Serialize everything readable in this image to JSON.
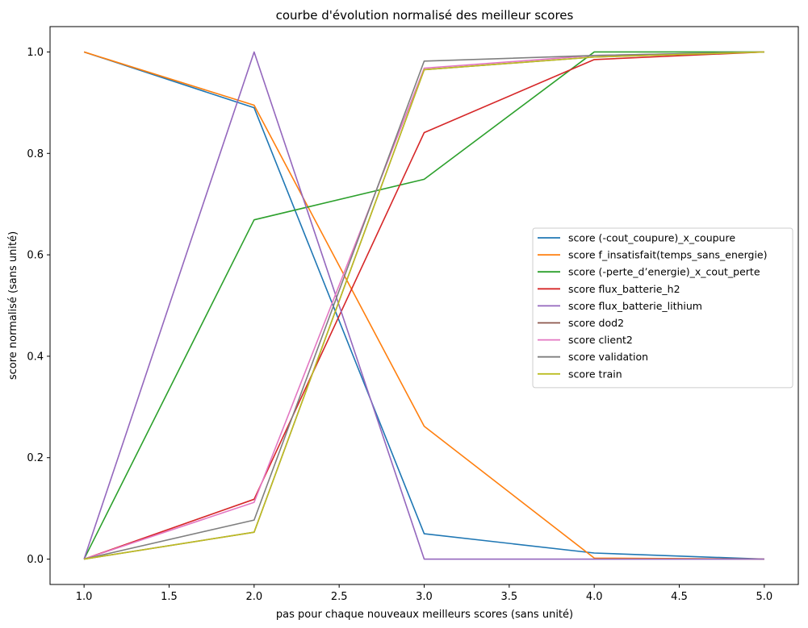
{
  "chart_data": {
    "type": "line",
    "title": "courbe d'évolution normalisé des meilleur scores",
    "xlabel": "pas pour chaque nouveaux meilleurs scores (sans unité)",
    "ylabel": "score normalisé (sans unité)",
    "xlim": [
      0.8,
      5.2
    ],
    "ylim": [
      -0.05,
      1.05
    ],
    "xticks": [
      1.0,
      1.5,
      2.0,
      2.5,
      3.0,
      3.5,
      4.0,
      4.5,
      5.0
    ],
    "xtick_labels": [
      "1.0",
      "1.5",
      "2.0",
      "2.5",
      "3.0",
      "3.5",
      "4.0",
      "4.5",
      "5.0"
    ],
    "yticks": [
      0.0,
      0.2,
      0.4,
      0.6,
      0.8,
      1.0
    ],
    "ytick_labels": [
      "0.0",
      "0.2",
      "0.4",
      "0.6",
      "0.8",
      "1.0"
    ],
    "grid": false,
    "legend_position": "center-right",
    "x": [
      1,
      2,
      3,
      4,
      5
    ],
    "series": [
      {
        "name": "score (-cout_coupure)_x_coupure",
        "color": "#1f77b4",
        "values": [
          1.0,
          0.89,
          0.05,
          0.012,
          0.0
        ]
      },
      {
        "name": "score f_insatisfait(temps_sans_energie)",
        "color": "#ff7f0e",
        "values": [
          1.0,
          0.895,
          0.262,
          0.002,
          0.0
        ]
      },
      {
        "name": "score (-perte_d’energie)_x_cout_perte",
        "color": "#2ca02c",
        "values": [
          0.0,
          0.669,
          0.749,
          1.0,
          1.0
        ]
      },
      {
        "name": "score flux_batterie_h2",
        "color": "#d62728",
        "values": [
          0.0,
          0.118,
          0.841,
          0.985,
          1.0
        ]
      },
      {
        "name": "score flux_batterie_lithium",
        "color": "#9467bd",
        "values": [
          0.0,
          1.0,
          0.0,
          0.0,
          0.0
        ]
      },
      {
        "name": "score dod2",
        "color": "#8c564b",
        "values": [
          0.0,
          0.053,
          0.965,
          0.99,
          1.0
        ]
      },
      {
        "name": "score client2",
        "color": "#e377c2",
        "values": [
          0.0,
          0.112,
          0.968,
          0.993,
          1.0
        ]
      },
      {
        "name": "score validation",
        "color": "#7f7f7f",
        "values": [
          0.0,
          0.077,
          0.982,
          0.993,
          1.0
        ]
      },
      {
        "name": "score train",
        "color": "#bcbd22",
        "values": [
          0.0,
          0.053,
          0.965,
          0.99,
          1.0
        ]
      }
    ]
  }
}
